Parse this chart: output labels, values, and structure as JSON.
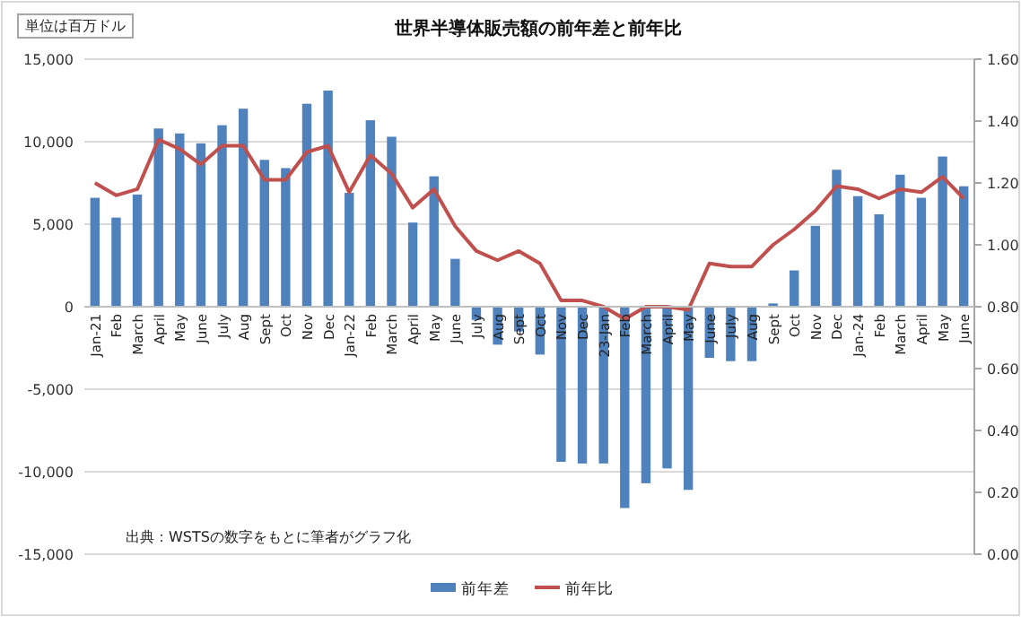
{
  "chart_data": {
    "type": "bar",
    "title": "世界半導体販売額の前年差と前年比",
    "annotations": [
      "単位は百万ドル",
      "出典：WSTSの数字をもとに筆者がグラフ化"
    ],
    "categories": [
      "Jan-21",
      "Feb",
      "March",
      "April",
      "May",
      "June",
      "July",
      "Aug",
      "Sept",
      "Oct",
      "Nov",
      "Dec",
      "Jan-22",
      "Feb",
      "March",
      "April",
      "May",
      "June",
      "July",
      "Aug",
      "Sept",
      "Oct",
      "Nov",
      "Dec",
      "23-Jan",
      "Feb",
      "March",
      "April",
      "May",
      "June",
      "July",
      "Aug",
      "Sept",
      "Oct",
      "Nov",
      "Dec",
      "Jan-24",
      "Feb",
      "March",
      "April",
      "May",
      "June"
    ],
    "series": [
      {
        "name": "前年差",
        "color": "#4f81bd",
        "values": [
          6600,
          5400,
          6800,
          10800,
          10500,
          9900,
          11000,
          12000,
          8900,
          8400,
          12300,
          13100,
          6900,
          11300,
          10300,
          5100,
          7900,
          2900,
          -800,
          -2300,
          -1500,
          -2900,
          -9400,
          -9500,
          -9500,
          -12200,
          -10700,
          -9800,
          -11100,
          -3100,
          -3300,
          -3300,
          200,
          2200,
          4900,
          8300,
          6700,
          5600,
          8000,
          6600,
          9100,
          7300
        ]
      },
      {
        "name": "前年比",
        "type": "line",
        "axis": "y2",
        "color": "#c0504d",
        "values": [
          1.2,
          1.16,
          1.18,
          1.34,
          1.31,
          1.26,
          1.32,
          1.32,
          1.21,
          1.21,
          1.3,
          1.32,
          1.17,
          1.29,
          1.23,
          1.12,
          1.18,
          1.06,
          0.98,
          0.95,
          0.98,
          0.94,
          0.82,
          0.82,
          0.8,
          0.76,
          0.8,
          0.8,
          0.79,
          0.94,
          0.93,
          0.93,
          1.0,
          1.05,
          1.11,
          1.19,
          1.18,
          1.15,
          1.18,
          1.17,
          1.22,
          1.15
        ]
      }
    ],
    "ylim": [
      -15000,
      15000
    ],
    "yticks": [
      {
        "value": -15000,
        "label": "-15,000"
      },
      {
        "value": -10000,
        "label": "-10,000"
      },
      {
        "value": -5000,
        "label": "-5,000"
      },
      0,
      {
        "value": 5000,
        "label": "5,000"
      },
      {
        "value": 10000,
        "label": "10,000"
      },
      {
        "value": 15000,
        "label": "15,000"
      }
    ],
    "y2lim": [
      0,
      1.6
    ],
    "y2ticks": [
      {
        "value": 0,
        "label": "0.00"
      },
      {
        "value": 0.2,
        "label": "0.20"
      },
      {
        "value": 0.4,
        "label": "0.40"
      },
      {
        "value": 0.6,
        "label": "0.60"
      },
      {
        "value": 0.8,
        "label": "0.80"
      },
      {
        "value": 1.0,
        "label": "1.00"
      },
      {
        "value": 1.2,
        "label": "1.20"
      },
      {
        "value": 1.4,
        "label": "1.40"
      },
      {
        "value": 1.6,
        "label": "1.60"
      }
    ],
    "grid": "y",
    "legend": "bottom"
  }
}
